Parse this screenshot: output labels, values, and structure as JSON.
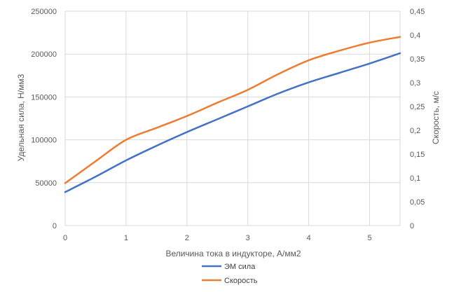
{
  "chart_data": {
    "type": "line",
    "xlabel": "Величина тока в индукторе, А/мм2",
    "ylabel": "Удельная сила, Н/мм3",
    "y2label": "Скорость, м/с",
    "xlim": [
      0,
      5.5
    ],
    "ylim": [
      0,
      250000
    ],
    "y2lim": [
      0,
      0.45
    ],
    "x_ticks": [
      "0",
      "1",
      "2",
      "3",
      "4",
      "5"
    ],
    "y_ticks": [
      "0",
      "50000",
      "100000",
      "150000",
      "200000",
      "250000"
    ],
    "y2_ticks": [
      "0",
      "0,05",
      "0,1",
      "0,15",
      "0,2",
      "0,25",
      "0,3",
      "0,35",
      "0,4",
      "0,45"
    ],
    "grid": true,
    "legend_position": "bottom",
    "series": [
      {
        "name": "ЭМ сила",
        "axis": "left",
        "color": "#4472c4",
        "x": [
          0,
          0.5,
          1,
          1.5,
          2,
          2.5,
          3,
          3.5,
          4,
          4.5,
          5,
          5.5
        ],
        "values": [
          39000,
          57000,
          76000,
          93000,
          109000,
          124000,
          139000,
          154000,
          167000,
          178000,
          189000,
          201000
        ]
      },
      {
        "name": "Скорость",
        "axis": "right",
        "color": "#ed7d31",
        "x": [
          0,
          0.5,
          1,
          1.5,
          2,
          2.5,
          3,
          3.5,
          4,
          4.5,
          5,
          5.5
        ],
        "values": [
          0.089,
          0.135,
          0.18,
          0.205,
          0.23,
          0.258,
          0.285,
          0.318,
          0.347,
          0.367,
          0.384,
          0.396
        ]
      }
    ]
  }
}
